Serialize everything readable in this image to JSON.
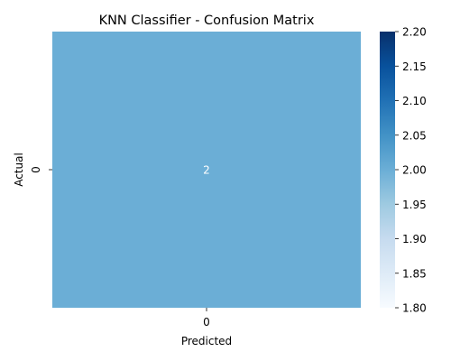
{
  "chart_data": {
    "type": "heatmap",
    "title": "KNN Classifier - Confusion Matrix",
    "xlabel": "Predicted",
    "ylabel": "Actual",
    "x_categories": [
      "0"
    ],
    "y_categories": [
      "0"
    ],
    "values": [
      [
        2
      ]
    ],
    "annotations": [
      [
        "2"
      ]
    ],
    "colormap": "Blues",
    "colorbar": {
      "range": [
        1.8,
        2.2
      ],
      "ticks": [
        "1.80",
        "1.85",
        "1.90",
        "1.95",
        "2.00",
        "2.05",
        "2.10",
        "2.15",
        "2.20"
      ]
    },
    "colors": {
      "cell": "#6baed6",
      "annotation_text": "#ffffff"
    }
  }
}
